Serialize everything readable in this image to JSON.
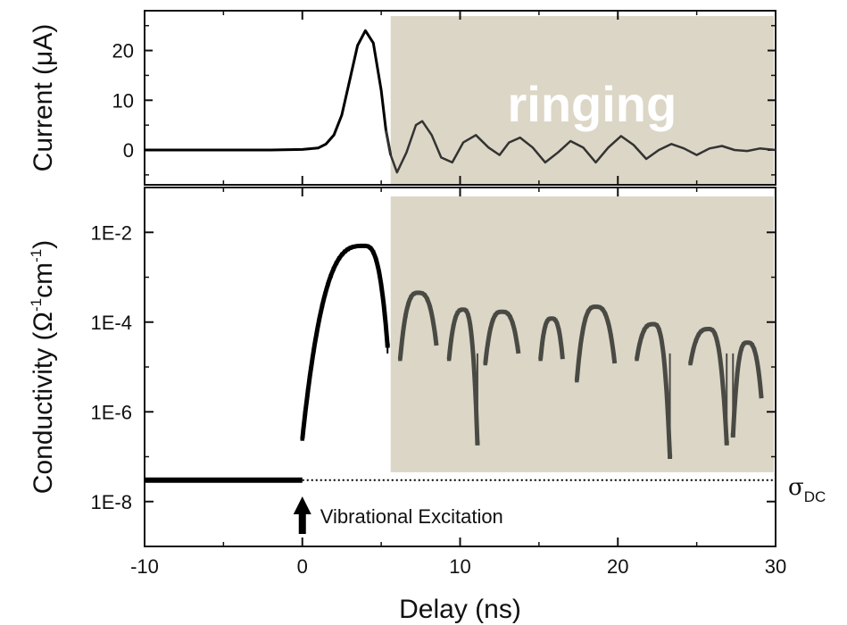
{
  "chart_data": [
    {
      "type": "line",
      "panel": "top",
      "ylabel": "Current (μA)",
      "xlim": [
        -10,
        30
      ],
      "ylim": [
        -7,
        28
      ],
      "yticks": [
        0,
        10,
        20
      ],
      "ytick_labels": [
        "0",
        "10",
        "20"
      ],
      "shaded_region": {
        "x": [
          5.6,
          30
        ],
        "label": "ringing",
        "color": "#dcd6c6"
      },
      "series": [
        {
          "color_before": "#000000",
          "color_after": "#333333",
          "x": [
            -10,
            -2,
            0,
            1,
            1.5,
            2,
            2.5,
            3,
            3.5,
            4,
            4.5,
            5,
            5.3,
            5.6,
            6,
            6.6,
            7.2,
            7.6,
            8.2,
            8.8,
            9.5,
            10.2,
            11,
            11.8,
            12.5,
            13.1,
            13.8,
            14.6,
            15.4,
            16.2,
            17,
            17.8,
            18.6,
            19.4,
            20.2,
            21,
            21.8,
            22.6,
            23.4,
            24.2,
            25,
            25.8,
            26.6,
            27.4,
            28.2,
            29,
            30
          ],
          "y": [
            0,
            0,
            0.1,
            0.4,
            1.2,
            3,
            7,
            14,
            21,
            24,
            21.5,
            12,
            4,
            -1,
            -4.5,
            -0.5,
            5,
            5.8,
            3,
            -1.5,
            -2.5,
            1.5,
            3,
            0.5,
            -1,
            1.5,
            2.5,
            0.5,
            -2.5,
            -0.5,
            1.8,
            0.5,
            -2.5,
            0.5,
            2.8,
            1,
            -1.8,
            0,
            1.2,
            0.3,
            -1,
            0.3,
            0.8,
            0,
            -0.2,
            0.3,
            0
          ]
        }
      ]
    },
    {
      "type": "scatter",
      "panel": "bottom",
      "xlabel": "Delay (ns)",
      "ylabel": "Conductivity (Ω⁻¹cm⁻¹)",
      "ylabel_parts": {
        "pre": "Conductivity (",
        "omega": "Ω",
        "exp1": "-1",
        "cm": "cm",
        "exp2": "-1",
        "post": ")"
      },
      "xlim": [
        -10,
        30
      ],
      "xticks": [
        -10,
        0,
        10,
        20,
        30
      ],
      "xtick_labels": [
        "-10",
        "0",
        "10",
        "20",
        "30"
      ],
      "yscale": "log",
      "ylim": [
        1e-09,
        0.1
      ],
      "yticks": [
        1e-08,
        1e-06,
        0.0001,
        0.01
      ],
      "ytick_labels": [
        "1E-8",
        "1E-6",
        "1E-4",
        "1E-2"
      ],
      "shaded_region": {
        "x": [
          5.6,
          30
        ],
        "color": "#dcd6c6"
      },
      "baseline": {
        "value": 3e-08,
        "label": "σ",
        "label_sub": "DC"
      },
      "annotation": {
        "text": "Vibrational Excitation",
        "x": 0
      },
      "main_peak": {
        "x_start": 0,
        "x_end": 5.4,
        "peak_x": 3.9,
        "peak_value": 0.005,
        "start_value": 2.5e-07,
        "end_value": 3e-05
      },
      "ringing_arcs": [
        {
          "x_start": 6.2,
          "x_end": 8.5,
          "peak_value": 0.00045,
          "start_value": 1.5e-05,
          "end_value": 3e-05
        },
        {
          "x_start": 9.3,
          "x_end": 11.1,
          "peak_value": 0.00019,
          "start_value": 1.5e-05,
          "end_value": 2e-07
        },
        {
          "x_start": 11.6,
          "x_end": 13.7,
          "peak_value": 0.00017,
          "start_value": 1.2e-05,
          "end_value": 2e-05
        },
        {
          "x_start": 15.1,
          "x_end": 16.5,
          "peak_value": 0.00012,
          "start_value": 1.5e-05,
          "end_value": 1.5e-05
        },
        {
          "x_start": 17.4,
          "x_end": 19.8,
          "peak_value": 0.00022,
          "start_value": 5e-06,
          "end_value": 1.2e-05
        },
        {
          "x_start": 21.2,
          "x_end": 23.3,
          "peak_value": 9e-05,
          "start_value": 1.5e-05,
          "end_value": 1e-07
        },
        {
          "x_start": 24.6,
          "x_end": 26.9,
          "peak_value": 7e-05,
          "start_value": 1.2e-05,
          "end_value": 2e-07
        },
        {
          "x_start": 27.3,
          "x_end": 29.1,
          "peak_value": 3.5e-05,
          "start_value": 3e-07,
          "end_value": 2e-06
        }
      ],
      "dip_markers": [
        {
          "x": 5.4,
          "y": 3e-05
        },
        {
          "x": 11.1,
          "y": 2e-07
        },
        {
          "x": 23.3,
          "y": 1e-07
        },
        {
          "x": 26.9,
          "y": 2e-07
        },
        {
          "x": 27.3,
          "y": 3e-07
        }
      ],
      "colors": {
        "before": "#000000",
        "after": "#4a4a45"
      }
    }
  ]
}
